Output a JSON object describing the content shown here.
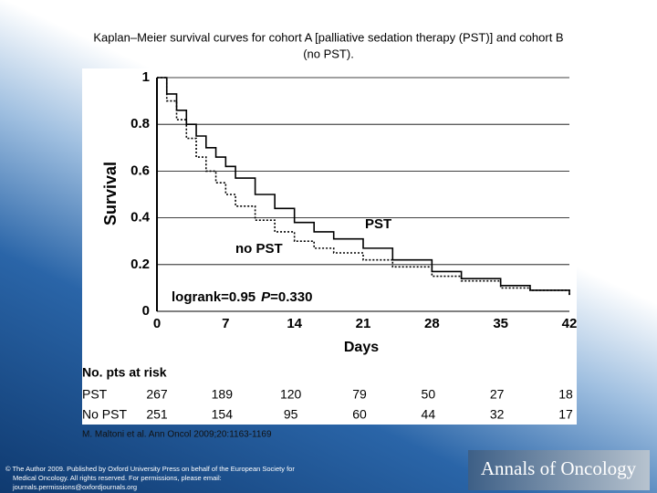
{
  "title": "Kaplan–Meier survival curves for cohort A [palliative sedation therapy (PST)] and cohort B (no PST).",
  "chart_data": {
    "type": "line",
    "step": true,
    "xlabel": "Days",
    "ylabel": "Survival",
    "xlim": [
      0,
      42
    ],
    "xticks": [
      0,
      7,
      14,
      21,
      28,
      35,
      42
    ],
    "ylim": [
      0,
      1
    ],
    "yticks": [
      0,
      0.2,
      0.4,
      0.6,
      0.8,
      1
    ],
    "grid": true,
    "series": [
      {
        "name": "PST",
        "color": "#000000",
        "dash": "solid",
        "x": [
          0,
          1,
          2,
          3,
          4,
          5,
          6,
          7,
          8,
          10,
          12,
          14,
          16,
          18,
          21,
          24,
          28,
          31,
          35,
          38,
          42
        ],
        "values": [
          1,
          0.93,
          0.86,
          0.8,
          0.75,
          0.7,
          0.66,
          0.62,
          0.57,
          0.5,
          0.44,
          0.38,
          0.34,
          0.31,
          0.27,
          0.22,
          0.17,
          0.14,
          0.11,
          0.09,
          0.07
        ]
      },
      {
        "name": "no PST",
        "color": "#000000",
        "dash": "dotted",
        "x": [
          0,
          1,
          2,
          3,
          4,
          5,
          6,
          7,
          8,
          10,
          12,
          14,
          16,
          18,
          21,
          24,
          28,
          31,
          35,
          38,
          42
        ],
        "values": [
          1,
          0.9,
          0.82,
          0.74,
          0.66,
          0.6,
          0.55,
          0.5,
          0.45,
          0.39,
          0.34,
          0.3,
          0.27,
          0.25,
          0.22,
          0.19,
          0.15,
          0.13,
          0.1,
          0.09,
          0.07
        ]
      }
    ],
    "annotations": {
      "logrank": "logrank=0.95",
      "p": "P",
      "p_value": "=0.330"
    },
    "risk_table": {
      "title": "No. pts at risk",
      "rows": [
        {
          "label": "PST",
          "values": [
            267,
            189,
            120,
            79,
            50,
            27,
            18
          ]
        },
        {
          "label": "No PST",
          "values": [
            251,
            154,
            95,
            60,
            44,
            32,
            17
          ]
        }
      ]
    }
  },
  "citation": "M. Maltoni et al. Ann Oncol 2009;20:1163-1169",
  "copyright": [
    "© The Author 2009. Published by Oxford University Press on behalf of the European Society for",
    "Medical Oncology. All rights reserved. For permissions, please email:",
    "journals.permissions@oxfordjournals.org"
  ],
  "logo": "Annals of Oncology"
}
